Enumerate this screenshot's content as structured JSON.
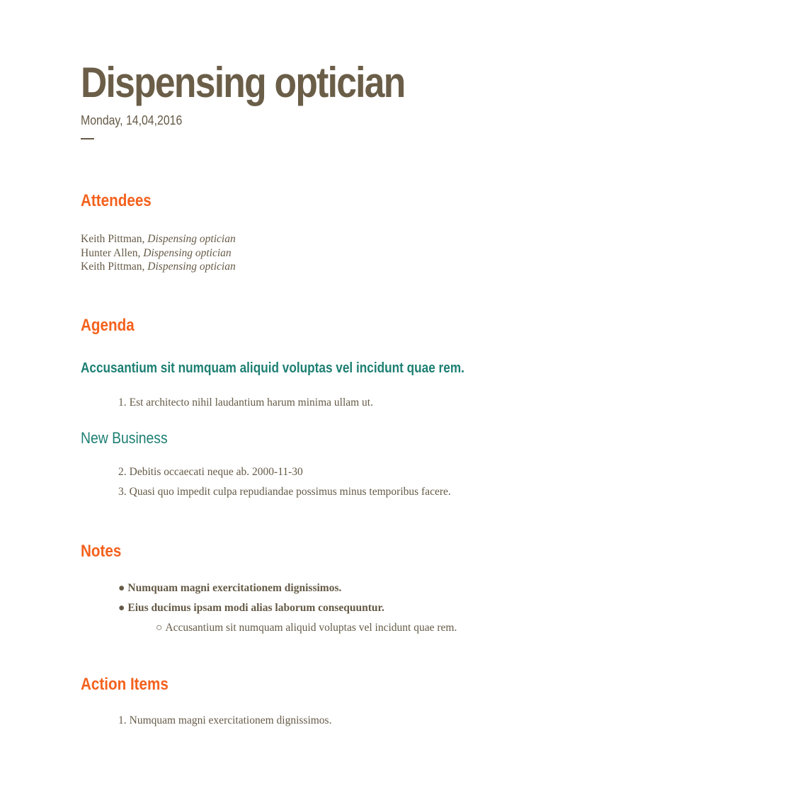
{
  "document": {
    "title": "Dispensing optician",
    "date": "Monday, 14,04,2016"
  },
  "attendees": {
    "heading": "Attendees",
    "people": [
      {
        "name": "Keith Pittman",
        "separator": ", ",
        "role": "Dispensing optician"
      },
      {
        "name": "Hunter Allen",
        "separator": ", ",
        "role": "Dispensing optician"
      },
      {
        "name": "Keith Pittman",
        "separator": ", ",
        "role": "Dispensing optician"
      }
    ]
  },
  "agenda": {
    "heading": "Agenda",
    "item_title": "Accusantium sit numquam aliquid voluptas vel incidunt quae rem.",
    "items_1": [
      {
        "number": "1.",
        "text": "Est architecto nihil laudantium harum minima ullam ut."
      }
    ],
    "subheading": "New Business",
    "items_2": [
      {
        "number": "2.",
        "text": "Debitis occaecati neque ab. 2000-11-30"
      },
      {
        "number": "3.",
        "text": "Quasi quo impedit culpa repudiandae possimus minus temporibus facere."
      }
    ]
  },
  "notes": {
    "heading": "Notes",
    "items": [
      {
        "bullet": "●",
        "text": "Numquam magni exercitationem dignissimos."
      },
      {
        "bullet": "●",
        "text": "Eius ducimus ipsam modi alias laborum consequuntur."
      }
    ],
    "subitem": {
      "bullet": "○",
      "text": "Accusantium sit numquam aliquid voluptas vel incidunt quae rem."
    }
  },
  "action_items": {
    "heading": "Action Items",
    "items": [
      {
        "number": "1.",
        "text": "Numquam magni exercitationem dignissimos."
      }
    ]
  },
  "colors": {
    "text": "#655a46",
    "title": "#6b5e48",
    "section_heading": "#f4611d",
    "agenda_heading": "#1d7f73"
  }
}
